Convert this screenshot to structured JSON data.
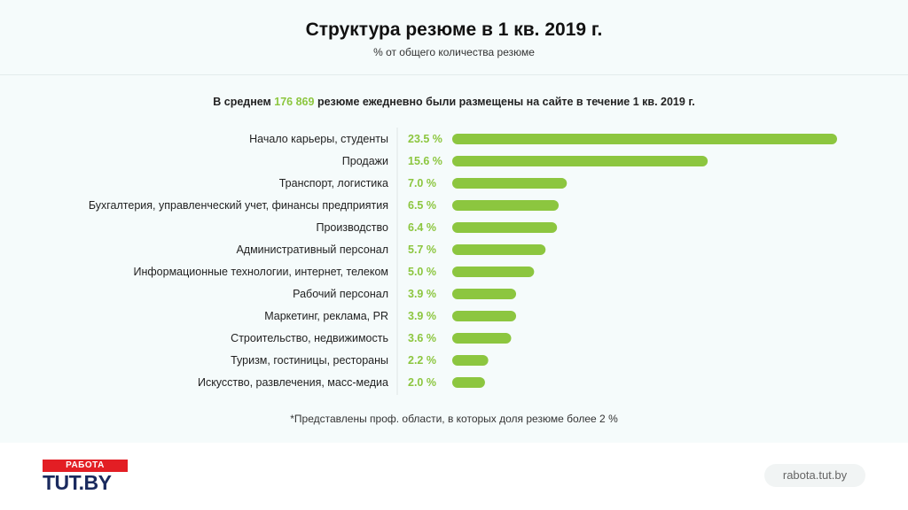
{
  "header": {
    "title": "Структура резюме в 1 кв. 2019 г.",
    "subtitle": "% от общего количества резюме"
  },
  "note": {
    "prefix": "В среднем ",
    "highlight": "176 869",
    "suffix": " резюме ежедневно были размещены на сайте в течение 1 кв. 2019 г."
  },
  "footnote": "*Представлены проф. области, в которых доля резюме более 2 %",
  "footer": {
    "logo_top": "РАБОТА",
    "logo_main": "TUT.BY",
    "url": "rabota.tut.by"
  },
  "colors": {
    "bar": "#8cc63f",
    "value_text": "#8cc63f"
  },
  "chart_data": {
    "type": "bar",
    "orientation": "horizontal",
    "title": "Структура резюме в 1 кв. 2019 г.",
    "subtitle": "% от общего количества резюме",
    "value_suffix": " %",
    "categories": [
      "Начало карьеры, студенты",
      "Продажи",
      "Транспорт, логистика",
      "Бухгалтерия, управленческий учет, финансы предприятия",
      "Производство",
      "Административный персонал",
      "Информационные технологии, интернет, телеком",
      "Рабочий персонал",
      "Маркетинг, реклама, PR",
      "Строительство, недвижимость",
      "Туризм, гостиницы, рестораны",
      "Искусство, развлечения, масс-медиа"
    ],
    "values": [
      23.5,
      15.6,
      7.0,
      6.5,
      6.4,
      5.7,
      5.0,
      3.9,
      3.9,
      3.6,
      2.2,
      2.0
    ],
    "value_labels": [
      "23.5 %",
      "15.6 %",
      "7.0 %",
      "6.5 %",
      "6.4 %",
      "5.7 %",
      "5.0 %",
      "3.9 %",
      "3.9 %",
      "3.6 %",
      "2.2 %",
      "2.0 %"
    ],
    "xlim": [
      0,
      23.5
    ],
    "grid": false,
    "legend": "none"
  }
}
